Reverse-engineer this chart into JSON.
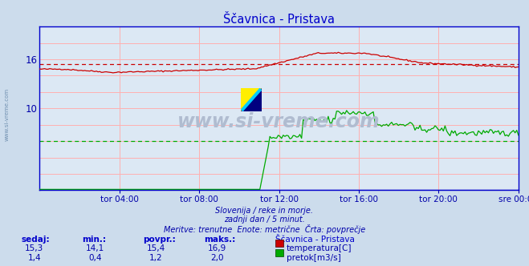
{
  "title": "Ščavnica - Pristava",
  "bg_color": "#ccdcec",
  "plot_bg_color": "#dce8f4",
  "grid_color": "#ffb0b0",
  "title_color": "#0000cc",
  "axis_label_color": "#0000aa",
  "text_color": "#0000aa",
  "watermark": "www.si-vreme.com",
  "watermark_color": "#b0bcd0",
  "subtitle_lines": [
    "Slovenija / reke in morje.",
    "zadnji dan / 5 minut.",
    "Meritve: trenutne  Enote: metrične  Črta: povprečje"
  ],
  "xtick_labels": [
    "tor 04:00",
    "tor 08:00",
    "tor 12:00",
    "tor 16:00",
    "tor 20:00",
    "sre 00:00"
  ],
  "xtick_positions": [
    0.167,
    0.333,
    0.5,
    0.667,
    0.833,
    1.0
  ],
  "ylim_temp": [
    0,
    20
  ],
  "ylim_flow": [
    0,
    4
  ],
  "n_points": 288,
  "temp_min": 14.1,
  "temp_max": 16.9,
  "temp_avg": 15.4,
  "temp_current": 15.3,
  "flow_min": 0.4,
  "flow_max": 2.0,
  "flow_avg": 1.2,
  "flow_current": 1.4,
  "temp_color": "#cc0000",
  "flow_color": "#00aa00",
  "height_color": "#0000cc",
  "avg_line_color_temp": "#cc0000",
  "avg_line_color_flow": "#00aa00",
  "spine_color": "#0000cc",
  "table_headers": [
    "sedaj:",
    "min.:",
    "povpr.:",
    "maks.:",
    "Ščavnica - Pristava"
  ],
  "table_row1": [
    "15,3",
    "14,1",
    "15,4",
    "16,9",
    "temperatura[C]"
  ],
  "table_row2": [
    "1,4",
    "0,4",
    "1,2",
    "2,0",
    "pretok[m3/s]"
  ]
}
